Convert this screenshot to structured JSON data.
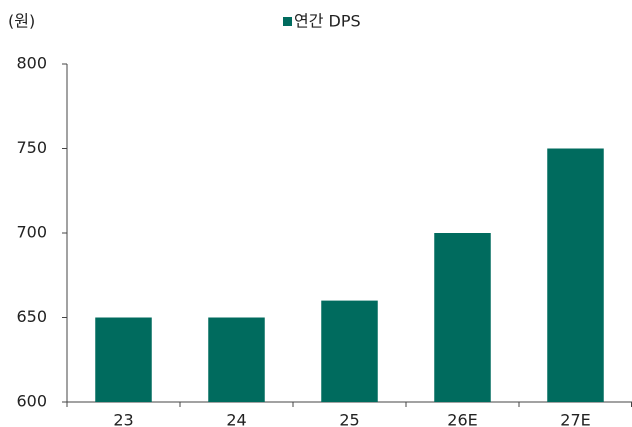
{
  "chart_data": {
    "type": "bar",
    "unit_label": "(원)",
    "categories": [
      "23",
      "24",
      "25",
      "26E",
      "27E"
    ],
    "series": [
      {
        "name": "연간 DPS",
        "color": "#006b5e",
        "values": [
          650,
          650,
          660,
          700,
          750
        ]
      }
    ],
    "ylim": [
      600,
      800
    ],
    "yticks": [
      600,
      650,
      700,
      750,
      800
    ],
    "legend": "top"
  }
}
